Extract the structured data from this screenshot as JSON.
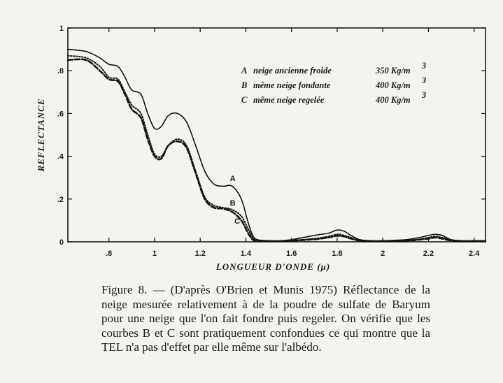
{
  "chart_data": {
    "type": "line",
    "xlabel": "LONGUEUR D'ONDE (μ)",
    "ylabel": "REFLECTANCE",
    "xlim": [
      0.62,
      2.45
    ],
    "ylim": [
      0,
      1
    ],
    "x_ticks": [
      {
        "value": 0.8,
        "label": ".8"
      },
      {
        "value": 1.0,
        "label": "1"
      },
      {
        "value": 1.2,
        "label": "1.2"
      },
      {
        "value": 1.4,
        "label": "1.4"
      },
      {
        "value": 1.6,
        "label": "1.6"
      },
      {
        "value": 1.8,
        "label": "1.8"
      },
      {
        "value": 2.0,
        "label": "2"
      },
      {
        "value": 2.2,
        "label": "2.2"
      },
      {
        "value": 2.4,
        "label": "2.4"
      }
    ],
    "y_ticks": [
      {
        "value": 0,
        "label": "0"
      },
      {
        "value": 0.2,
        "label": ".2"
      },
      {
        "value": 0.4,
        "label": ".4"
      },
      {
        "value": 0.6,
        "label": ".6"
      },
      {
        "value": 0.8,
        "label": ".8"
      },
      {
        "value": 1.0,
        "label": "1"
      }
    ],
    "legend": [
      {
        "letter": "A",
        "text": "neige ancienne froide",
        "density": "350 Kg/m",
        "exp": "3"
      },
      {
        "letter": "B",
        "text": "même neige fondante",
        "density": "400 Kg/m",
        "exp": "3"
      },
      {
        "letter": "C",
        "text": "même neige regelée",
        "density": "400 Kg/m",
        "exp": "3"
      }
    ],
    "series": [
      {
        "name": "A",
        "style": "solid",
        "x": [
          0.62,
          0.7,
          0.76,
          0.8,
          0.84,
          0.87,
          0.9,
          0.94,
          0.97,
          1.0,
          1.03,
          1.06,
          1.1,
          1.14,
          1.18,
          1.22,
          1.26,
          1.3,
          1.34,
          1.38,
          1.41,
          1.43,
          1.45,
          1.5,
          1.55,
          1.6,
          1.7,
          1.76,
          1.8,
          1.83,
          1.86,
          1.9,
          1.95,
          2.0,
          2.1,
          2.16,
          2.2,
          2.23,
          2.26,
          2.3,
          2.35,
          2.4,
          2.45
        ],
        "y": [
          0.9,
          0.89,
          0.86,
          0.83,
          0.82,
          0.77,
          0.71,
          0.69,
          0.6,
          0.53,
          0.54,
          0.59,
          0.6,
          0.56,
          0.45,
          0.33,
          0.27,
          0.26,
          0.26,
          0.2,
          0.09,
          0.03,
          0.01,
          0.005,
          0.005,
          0.01,
          0.03,
          0.04,
          0.055,
          0.05,
          0.03,
          0.01,
          0.005,
          0.005,
          0.01,
          0.02,
          0.03,
          0.035,
          0.03,
          0.01,
          0.005,
          0.005,
          0.005
        ]
      },
      {
        "name": "B",
        "style": "dotted",
        "x": [
          0.62,
          0.7,
          0.76,
          0.8,
          0.84,
          0.87,
          0.9,
          0.94,
          0.97,
          1.0,
          1.03,
          1.06,
          1.1,
          1.14,
          1.18,
          1.22,
          1.26,
          1.3,
          1.34,
          1.38,
          1.41,
          1.43,
          1.45,
          1.5,
          1.55,
          1.6,
          1.7,
          1.76,
          1.8,
          1.83,
          1.86,
          1.9,
          1.95,
          2.0,
          2.1,
          2.16,
          2.2,
          2.23,
          2.26,
          2.3,
          2.35,
          2.4,
          2.45
        ],
        "y": [
          0.87,
          0.86,
          0.82,
          0.77,
          0.76,
          0.7,
          0.64,
          0.6,
          0.5,
          0.41,
          0.4,
          0.45,
          0.48,
          0.45,
          0.33,
          0.21,
          0.17,
          0.16,
          0.15,
          0.12,
          0.06,
          0.02,
          0.008,
          0.004,
          0.004,
          0.006,
          0.015,
          0.025,
          0.035,
          0.03,
          0.02,
          0.006,
          0.004,
          0.004,
          0.006,
          0.012,
          0.02,
          0.025,
          0.02,
          0.008,
          0.004,
          0.004,
          0.004
        ]
      },
      {
        "name": "C",
        "style": "dashed",
        "x": [
          0.62,
          0.7,
          0.76,
          0.8,
          0.84,
          0.87,
          0.9,
          0.94,
          0.97,
          1.0,
          1.03,
          1.06,
          1.1,
          1.14,
          1.18,
          1.22,
          1.26,
          1.3,
          1.34,
          1.38,
          1.41,
          1.43,
          1.45,
          1.5,
          1.55,
          1.6,
          1.7,
          1.76,
          1.8,
          1.83,
          1.86,
          1.9,
          1.95,
          2.0,
          2.1,
          2.16,
          2.2,
          2.23,
          2.26,
          2.3,
          2.35,
          2.4,
          2.45
        ],
        "y": [
          0.85,
          0.85,
          0.8,
          0.76,
          0.75,
          0.69,
          0.62,
          0.58,
          0.48,
          0.4,
          0.39,
          0.45,
          0.47,
          0.44,
          0.32,
          0.2,
          0.16,
          0.155,
          0.14,
          0.1,
          0.04,
          0.01,
          0.004,
          0.003,
          0.003,
          0.005,
          0.012,
          0.02,
          0.028,
          0.025,
          0.015,
          0.005,
          0.003,
          0.003,
          0.005,
          0.01,
          0.015,
          0.02,
          0.015,
          0.006,
          0.003,
          0.003,
          0.003
        ]
      }
    ],
    "curve_labels": [
      {
        "name": "A",
        "x": 1.33,
        "y": 0.285
      },
      {
        "name": "B",
        "x": 1.33,
        "y": 0.17
      },
      {
        "name": "C",
        "x": 1.35,
        "y": 0.085
      }
    ]
  },
  "caption": "Figure 8. — (D'après O'Brien et Munis 1975) Réflectance de la neige mesurée relativement à de la poudre de sulfate de Baryum pour une neige que l'on fait fondre puis regeler. On vérifie que les courbes B et C sont pratiquement confondues ce qui montre que la TEL n'a pas d'effet par elle même sur l'albédo."
}
